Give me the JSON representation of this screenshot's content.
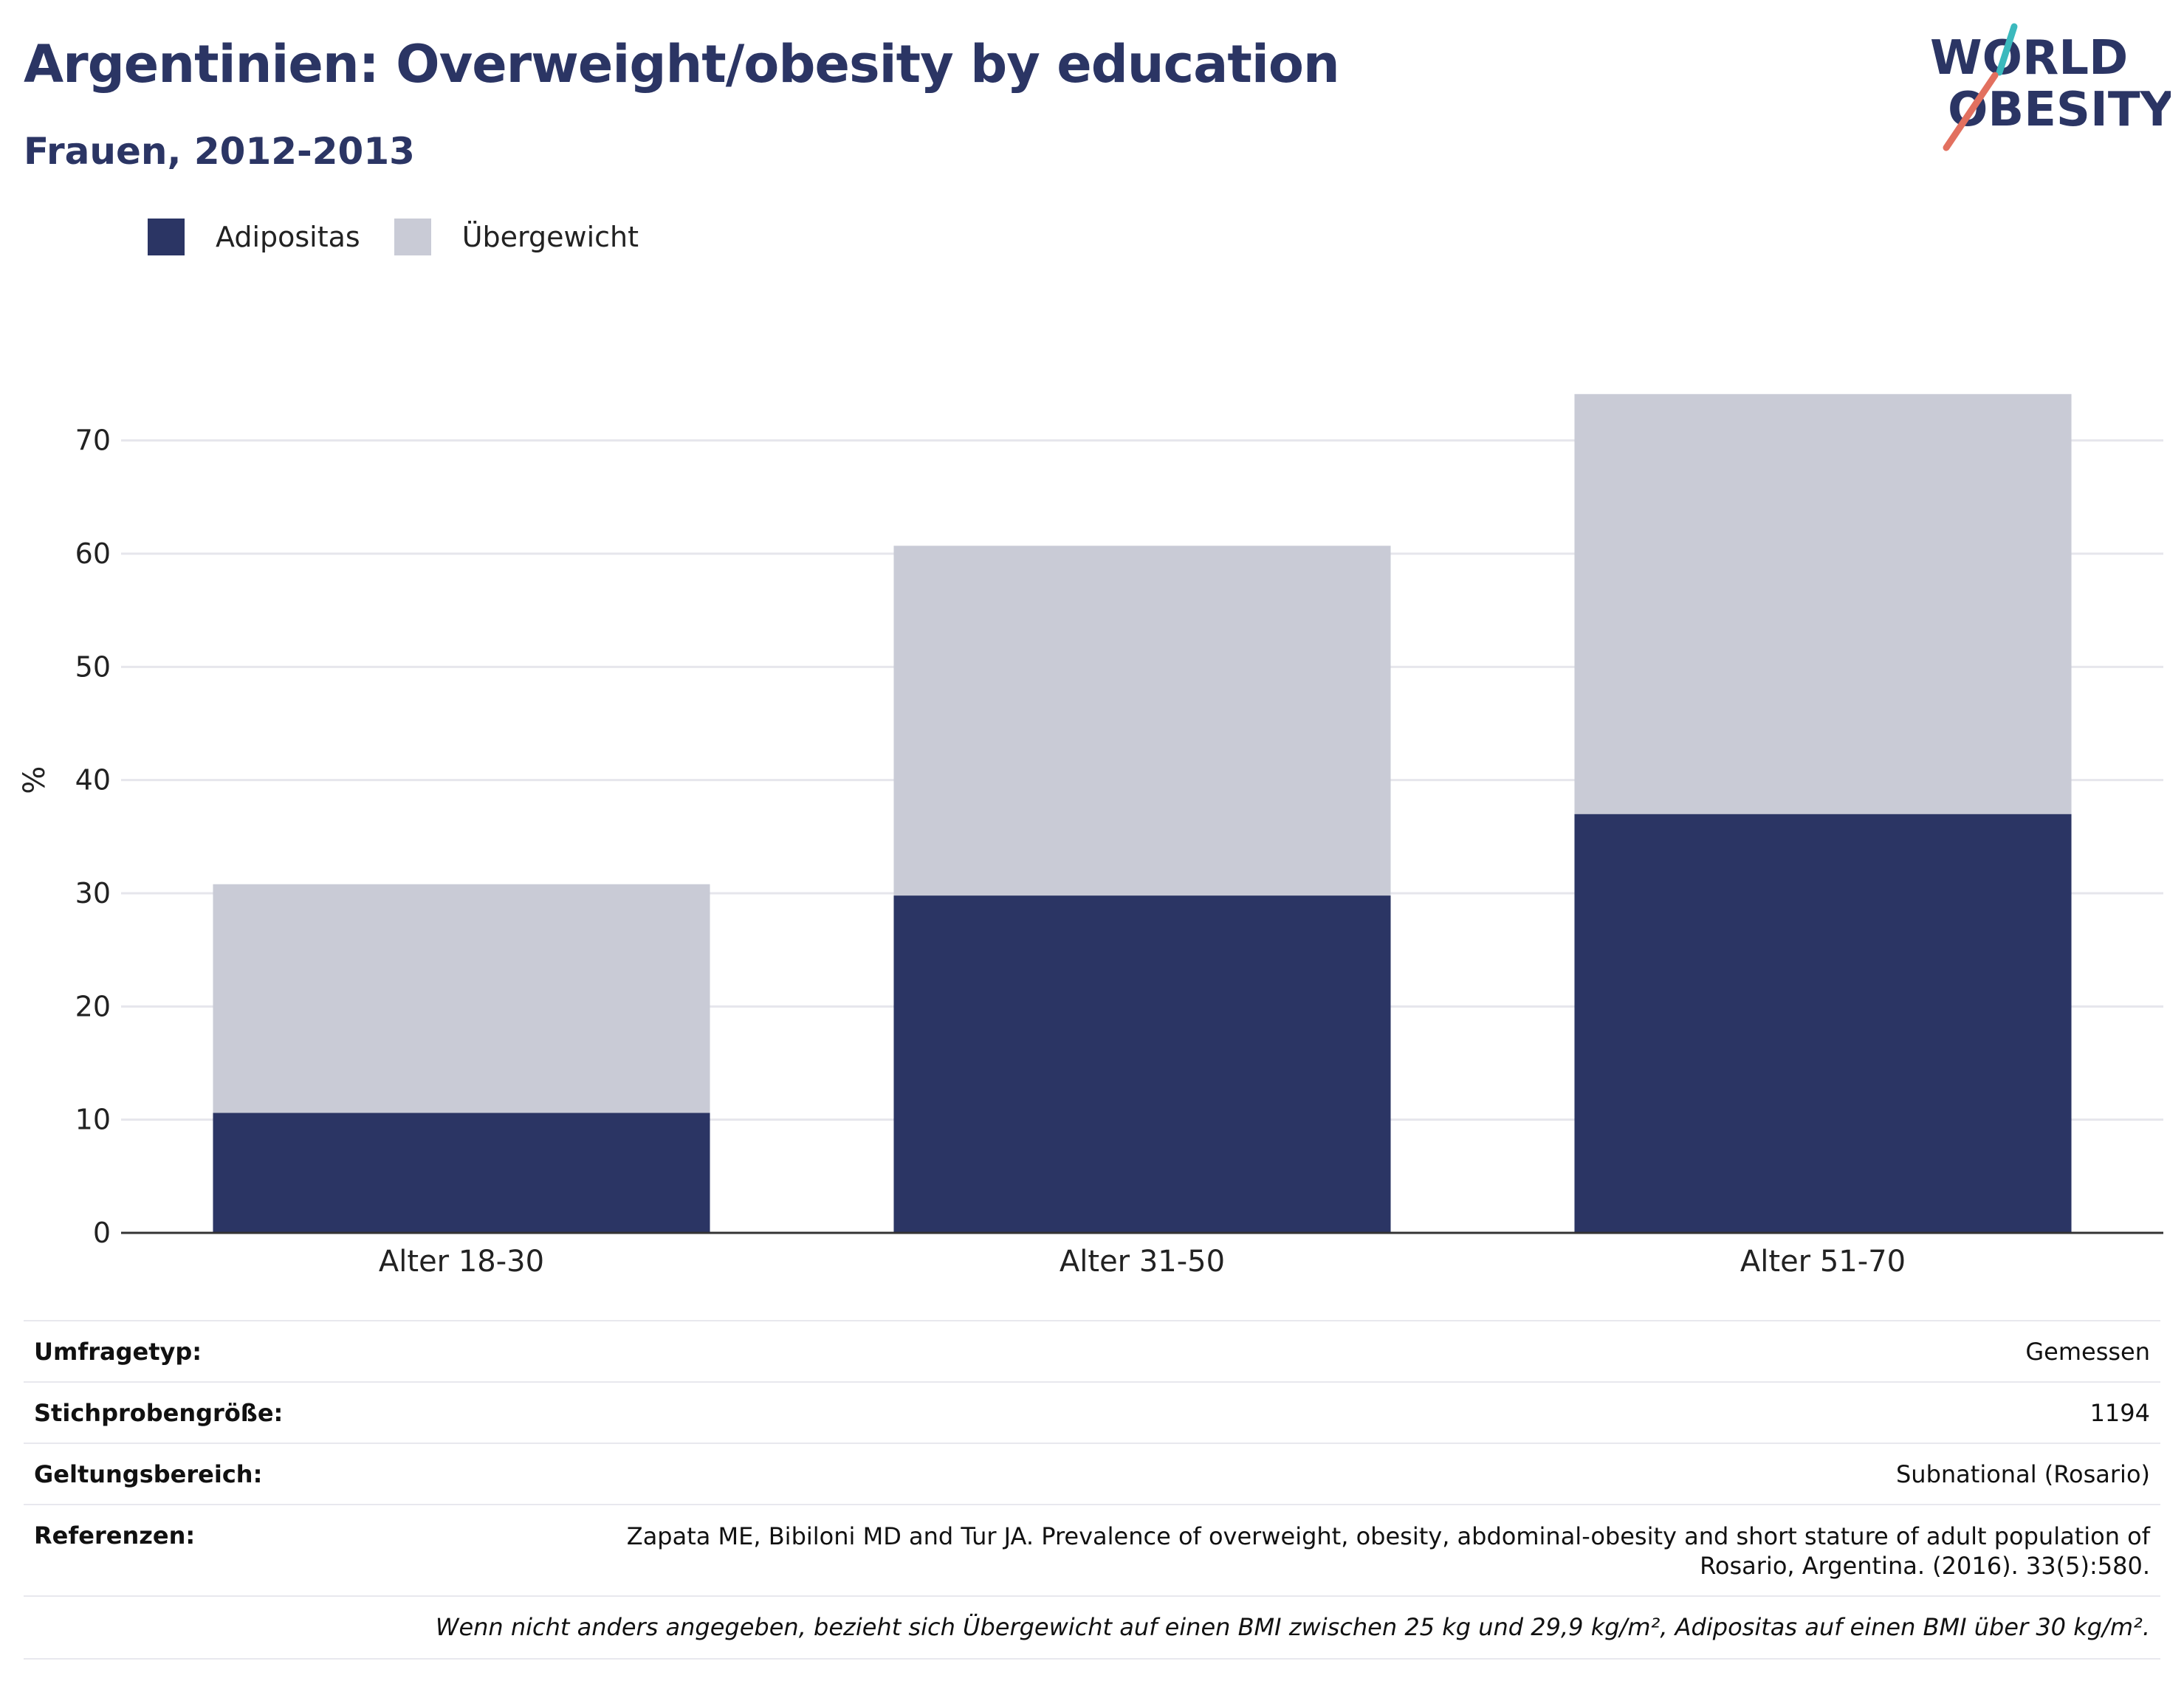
{
  "title": "Argentinien: Overweight/obesity by education",
  "subtitle": "Frauen, 2012-2013",
  "logo": {
    "line1": "WORLD",
    "line2": "OBESITY",
    "colors": {
      "text": "#2b3564",
      "slash_red": "#e2705f",
      "slash_teal": "#3bb9bd"
    }
  },
  "colors": {
    "adipositas": "#2b3564",
    "uebergewicht": "#c9cbd6",
    "title": "#2b3564",
    "grid": "#e6e6ec",
    "axis": "#333333"
  },
  "legend": [
    {
      "label": "Adipositas",
      "color": "#2b3564"
    },
    {
      "label": "Übergewicht",
      "color": "#c9cbd6"
    }
  ],
  "chart_data": {
    "type": "bar",
    "stacked": true,
    "categories": [
      "Alter 18-30",
      "Alter 31-50",
      "Alter 51-70"
    ],
    "series": [
      {
        "name": "Adipositas",
        "values": [
          10.6,
          29.8,
          37.0
        ],
        "color": "#2b3564"
      },
      {
        "name": "Übergewicht",
        "values": [
          20.2,
          30.9,
          37.1
        ],
        "color": "#c9cbd6"
      }
    ],
    "ylabel": "%",
    "ylim": [
      0,
      75
    ],
    "yticks": [
      0,
      10,
      20,
      30,
      40,
      50,
      60,
      70
    ],
    "grid": true,
    "legend_position": "top-left"
  },
  "info_rows": [
    {
      "label": "Umfragetyp:",
      "value": "Gemessen"
    },
    {
      "label": "Stichprobengröße:",
      "value": "1194"
    },
    {
      "label": "Geltungsbereich:",
      "value": "Subnational (Rosario)"
    },
    {
      "label": "Referenzen:",
      "value": "Zapata ME, Bibiloni MD and Tur JA. Prevalence of overweight, obesity, abdominal-obesity and short stature of adult population of Rosario, Argentina. (2016). 33(5):580."
    }
  ],
  "note": "Wenn nicht anders angegeben, bezieht sich Übergewicht auf einen BMI zwischen 25 kg und 29,9 kg/m², Adipositas auf einen BMI über 30 kg/m²."
}
